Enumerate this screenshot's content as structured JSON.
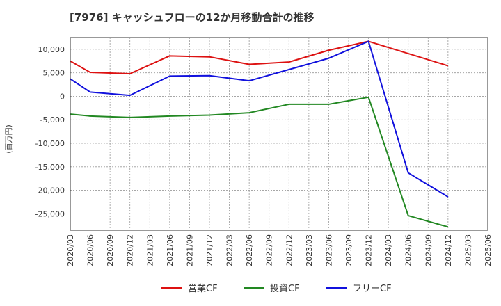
{
  "chart_data": {
    "type": "line",
    "title": "[7976]  キャッシュフローの12か月移動合計の推移",
    "ylabel": "(百万円)",
    "xlabel": "",
    "ylim": [
      -28500,
      12500
    ],
    "yticks": [
      10000,
      5000,
      0,
      -5000,
      -10000,
      -15000,
      -20000,
      -25000
    ],
    "ytick_labels": [
      "10,000",
      "5,000",
      "0",
      "-5,000",
      "-10,000",
      "-15,000",
      "-20,000",
      "-25,000"
    ],
    "categories": [
      "2020/03",
      "2020/06",
      "2020/09",
      "2020/12",
      "2021/03",
      "2021/06",
      "2021/09",
      "2021/12",
      "2022/03",
      "2022/06",
      "2022/09",
      "2022/12",
      "2023/03",
      "2023/06",
      "2023/09",
      "2023/12",
      "2024/03",
      "2024/06",
      "2024/09",
      "2024/12",
      "2025/03",
      "2025/06"
    ],
    "grid": true,
    "legend_position": "bottom-center",
    "series": [
      {
        "name": "営業CF",
        "color": "#dd1111",
        "values": [
          7500,
          5100,
          null,
          4800,
          null,
          8600,
          null,
          8400,
          null,
          6800,
          null,
          7300,
          null,
          9800,
          null,
          11700,
          null,
          null,
          null,
          6500,
          null,
          null
        ]
      },
      {
        "name": "投資CF",
        "color": "#228822",
        "values": [
          -3800,
          -4200,
          null,
          -4500,
          null,
          -4200,
          null,
          -4000,
          null,
          -3500,
          null,
          -1700,
          null,
          -1700,
          null,
          -200,
          null,
          -25400,
          null,
          -27800,
          null,
          null
        ]
      },
      {
        "name": "フリーCF",
        "color": "#1111dd",
        "values": [
          3700,
          900,
          null,
          200,
          null,
          4300,
          null,
          4400,
          null,
          3300,
          null,
          null,
          null,
          8100,
          null,
          11700,
          null,
          -16300,
          null,
          -21400,
          null,
          null
        ]
      }
    ]
  }
}
